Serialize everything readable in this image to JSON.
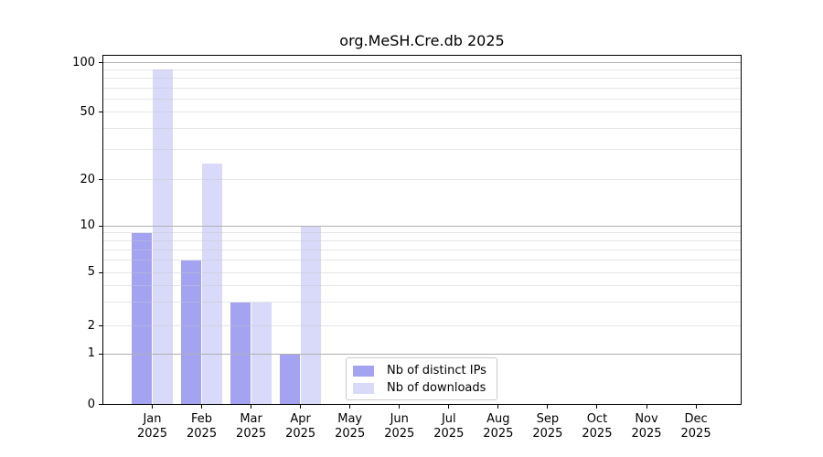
{
  "title": "org.MeSH.Cre.db 2025",
  "chart_data": {
    "type": "bar",
    "title": "org.MeSH.Cre.db 2025",
    "categories": [
      "Jan",
      "Feb",
      "Mar",
      "Apr",
      "May",
      "Jun",
      "Jul",
      "Aug",
      "Sep",
      "Oct",
      "Nov",
      "Dec"
    ],
    "year": "2025",
    "series": [
      {
        "name": "Nb of distinct IPs",
        "color": "#a3a3f2",
        "values": [
          9,
          6,
          3,
          1,
          0,
          0,
          0,
          0,
          0,
          0,
          0,
          0
        ]
      },
      {
        "name": "Nb of downloads",
        "color": "#d9d9fa",
        "values": [
          91,
          25,
          3,
          10,
          0,
          0,
          0,
          0,
          0,
          0,
          0,
          0
        ]
      }
    ],
    "yticks": [
      0,
      1,
      2,
      5,
      10,
      20,
      50,
      100
    ],
    "ylim": [
      0,
      100
    ],
    "yscale": "symlog",
    "xlabel": "",
    "ylabel": "",
    "grid": "horizontal minor and major gridlines, drawn over bars",
    "legend_position": "lower center"
  },
  "legend": {
    "items": [
      {
        "label": "Nb of distinct IPs",
        "color": "#a3a3f2"
      },
      {
        "label": "Nb of downloads",
        "color": "#d9d9fa"
      }
    ]
  }
}
